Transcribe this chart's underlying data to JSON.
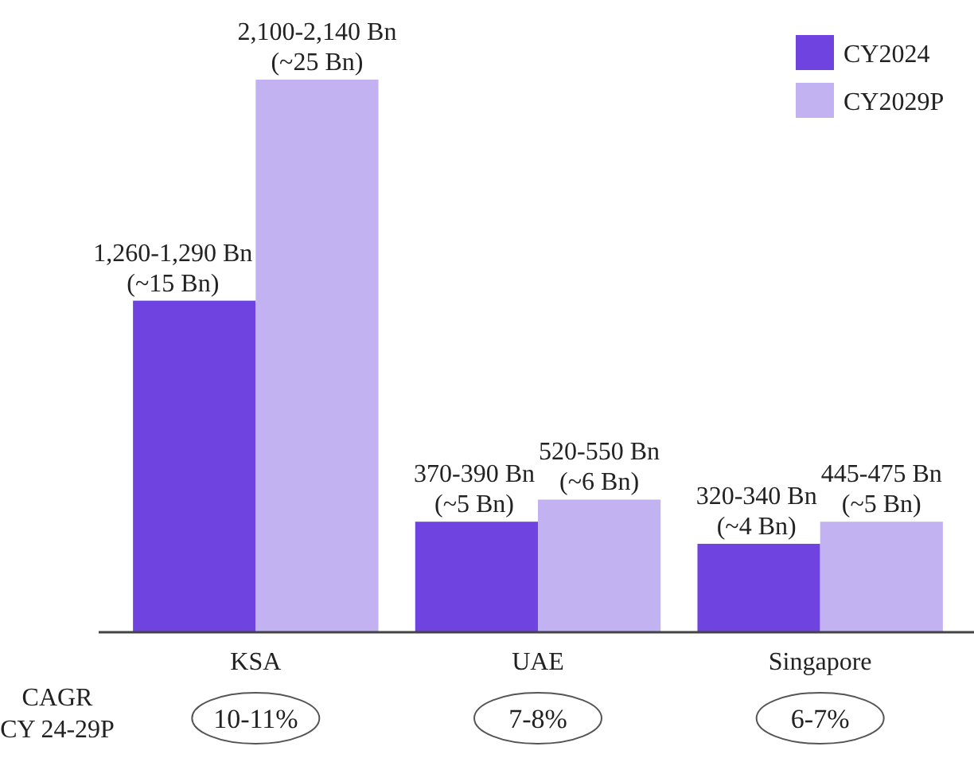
{
  "chart_data": {
    "type": "bar",
    "tick_labels": "x",
    "categories": [
      "KSA",
      "UAE",
      "Singapore"
    ],
    "series": [
      {
        "name": "CY2024",
        "color": "#6e43e0",
        "values": [
          15,
          5,
          4
        ],
        "value_labels": [
          "1,260-1,290 Bn\n(~15 Bn)",
          "370-390 Bn\n(~5 Bn)",
          "320-340 Bn\n(~4 Bn)"
        ]
      },
      {
        "name": "CY2029P",
        "color": "#c3b2f2",
        "values": [
          25,
          6,
          5
        ],
        "value_labels": [
          "2,100-2,140 Bn\n(~25 Bn)",
          "520-550 Bn\n(~6 Bn)",
          "445-475 Bn\n(~5 Bn)"
        ]
      }
    ],
    "legend": "top right",
    "annotations": [
      "CAGR\nCY 24-29P",
      "10-11%",
      "7-8%",
      "6-7%"
    ]
  }
}
